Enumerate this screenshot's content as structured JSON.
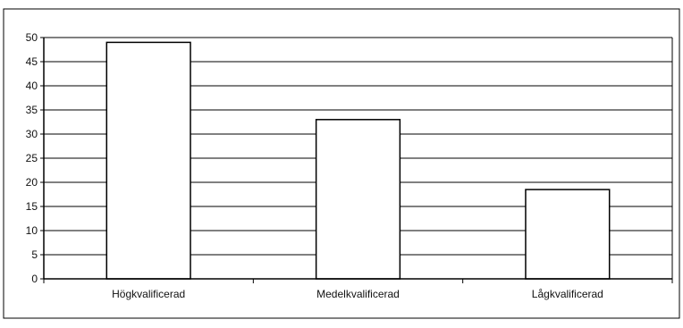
{
  "chart_data": {
    "type": "bar",
    "title": "",
    "xlabel": "",
    "ylabel": "",
    "categories": [
      "Högkvalificerad",
      "Medelkvalificerad",
      "Lågkvalificerad"
    ],
    "values": [
      49,
      33,
      18.5
    ],
    "ylim": [
      0,
      50
    ],
    "yticks": [
      0,
      5,
      10,
      15,
      20,
      25,
      30,
      35,
      40,
      45,
      50
    ],
    "grid": true,
    "legend": "none",
    "colors": {
      "bar_fill": "#ffffff",
      "bar_stroke": "#000000",
      "grid": "#000000",
      "axis": "#000000"
    }
  }
}
